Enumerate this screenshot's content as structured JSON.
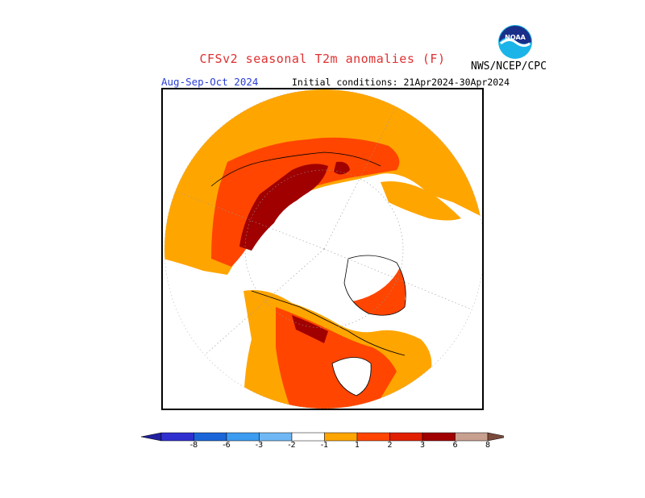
{
  "header": {
    "title": "CFSv2 seasonal T2m anomalies (F)",
    "season": "Aug-Sep-Oct 2024",
    "initial_conditions": "Initial conditions: 21Apr2024-30Apr2024",
    "organization": "NWS/NCEP/CPC",
    "logo_text": "NOAA"
  },
  "colors": {
    "title": "#e03030",
    "season": "#2a3ed6",
    "anomaly_1_2": "#ffa500",
    "anomaly_2_3": "#ff4500",
    "anomaly_3_6": "#e02000",
    "anomaly_6_8": "#a00000",
    "anomaly_gt_8": "#c8a090"
  },
  "legend": {
    "ticks": [
      "-8",
      "-6",
      "-3",
      "-2",
      "-1",
      "1",
      "2",
      "3",
      "6",
      "8"
    ],
    "colors": [
      "#2020a0",
      "#3030d0",
      "#1a66d9",
      "#3c9cf0",
      "#6fb8f5",
      "#ffffff",
      "#ffa500",
      "#ff4500",
      "#e02000",
      "#a00000",
      "#c8a090",
      "#7a4a3a"
    ]
  }
}
